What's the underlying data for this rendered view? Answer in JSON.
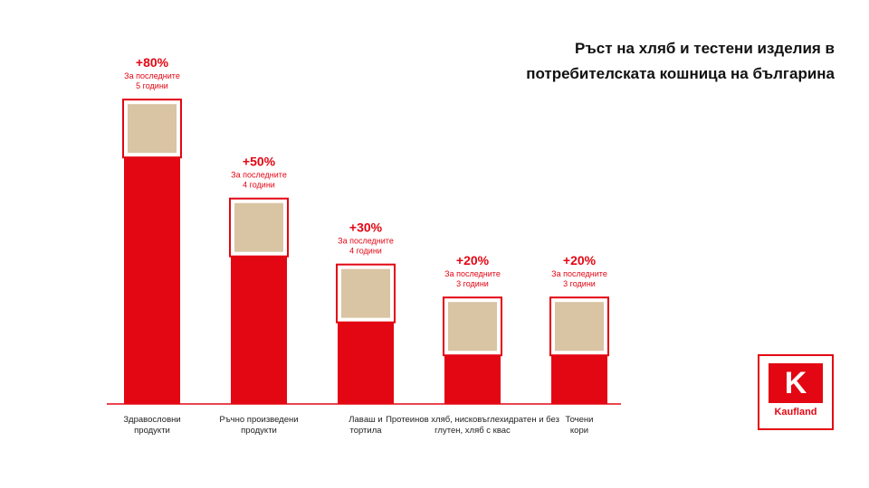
{
  "chart_data": {
    "type": "bar",
    "title_lines": [
      "Ръст на хляб и тестени изделия в",
      "потребителската кошница на българина"
    ],
    "categories": [
      [
        "Здравословни",
        "продукти"
      ],
      [
        "Ръчно произведени",
        "продукти"
      ],
      [
        "Лавaш и",
        "тортила"
      ],
      [
        "Протеинов хляб, нисковъглехидратен и без",
        "глутен, хляб с квас"
      ],
      [
        "Точени",
        "кори"
      ]
    ],
    "values": [
      80,
      50,
      30,
      20,
      20
    ],
    "value_labels": [
      "+80%",
      "+50%",
      "+30%",
      "+20%",
      "+20%"
    ],
    "period_labels": [
      [
        "За последните",
        "5 години"
      ],
      [
        "За последните",
        "4 години"
      ],
      [
        "За последните",
        "4 години"
      ],
      [
        "За последните",
        "3 години"
      ],
      [
        "За последните",
        "3 години"
      ]
    ],
    "photo_icons": [
      "bread-loaf-icon",
      "pastry-icon",
      "lavash-icon",
      "bread-basket-icon",
      "filo-dough-icon"
    ],
    "bar_color": "#e30613",
    "ylim": [
      0,
      100
    ],
    "grid": false
  },
  "logo": {
    "text": "Kaufland",
    "letter": "K",
    "color": "#e30613"
  }
}
